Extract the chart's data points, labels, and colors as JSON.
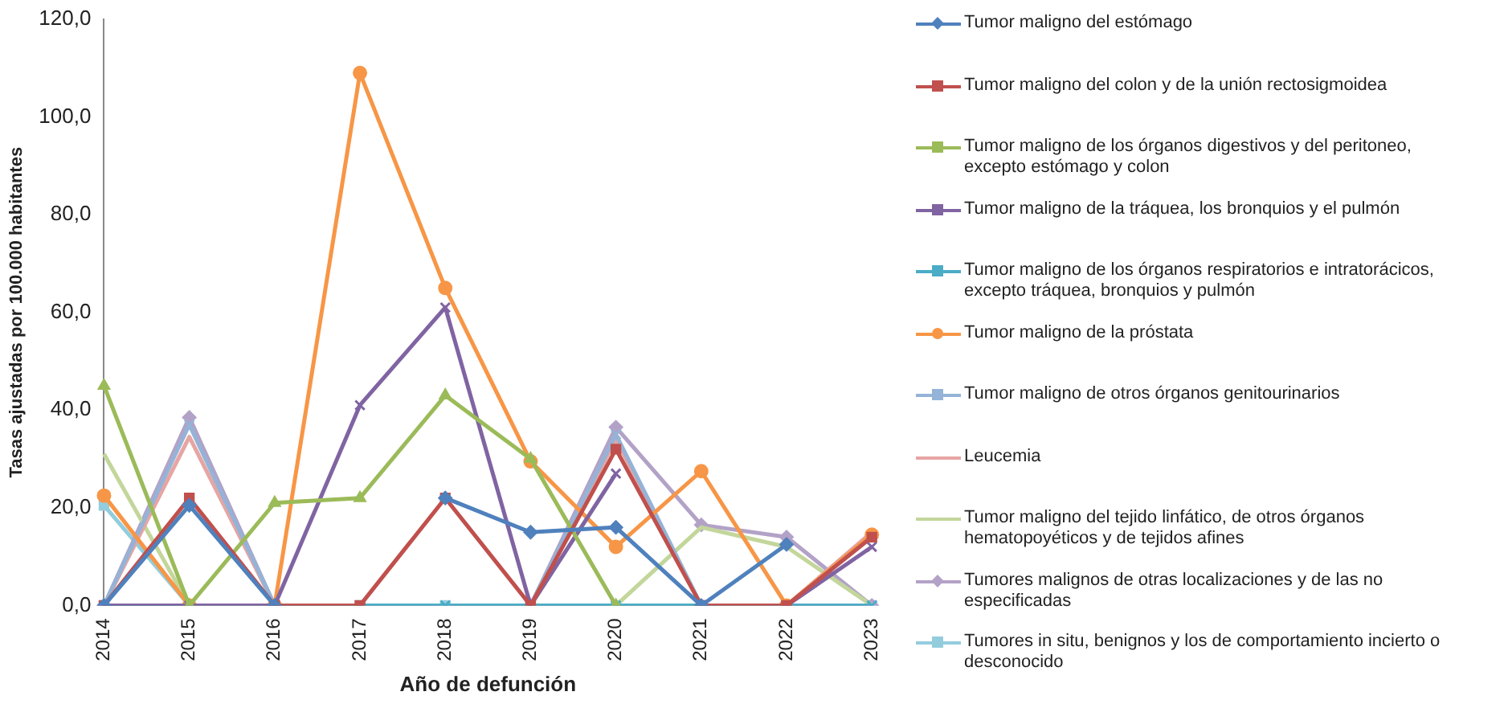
{
  "chart_data": {
    "type": "line",
    "xlabel": "Año de defunción",
    "ylabel": "Tasas ajustadas por 100.000 habitantes",
    "categories": [
      "2014",
      "2015",
      "2016",
      "2017",
      "2018",
      "2019",
      "2020",
      "2021",
      "2022",
      "2023"
    ],
    "ylim": [
      0,
      120
    ],
    "yticks": [
      {
        "value": 0,
        "label": "0,0"
      },
      {
        "value": 20,
        "label": "20,0"
      },
      {
        "value": 40,
        "label": "40,0"
      },
      {
        "value": 60,
        "label": "60,0"
      },
      {
        "value": 80,
        "label": "80,0"
      },
      {
        "value": 100,
        "label": "100,0"
      },
      {
        "value": 120,
        "label": "120,0"
      }
    ],
    "grid": false,
    "legend": "right",
    "series": [
      {
        "name": "Tumor maligno del estómago",
        "color": "#4f81bd",
        "marker": "diamond",
        "values": [
          0,
          20.5,
          0,
          null,
          22,
          15,
          16,
          0,
          12.5,
          null
        ]
      },
      {
        "name": "Tumor maligno del colon y de la unión rectosigmoidea",
        "color": "#c0504d",
        "marker": "square",
        "values": [
          0,
          22,
          0,
          0,
          22,
          0,
          32,
          0,
          0,
          14
        ]
      },
      {
        "name": "Tumor maligno de los órganos digestivos y del peritoneo, excepto estómago y colon",
        "color": "#9bbb59",
        "marker": "triangle",
        "values": [
          45,
          0,
          21,
          22,
          43,
          30,
          0,
          null,
          null,
          null
        ]
      },
      {
        "name": "Tumor maligno de la tráquea, los bronquios y el pulmón",
        "color": "#8064a2",
        "marker": "cross",
        "values": [
          0,
          0,
          0,
          41,
          61,
          0,
          27,
          null,
          0,
          12
        ]
      },
      {
        "name": "Tumor maligno de los órganos respiratorios e intratorácicos, excepto tráquea, bronquios y pulmón",
        "color": "#4bacc6",
        "marker": "cross",
        "values": [
          0,
          0,
          0,
          0,
          0,
          0,
          0,
          0,
          0,
          0
        ]
      },
      {
        "name": "Tumor maligno de la próstata",
        "color": "#f79646",
        "marker": "circle",
        "values": [
          22.5,
          0,
          0,
          109,
          65,
          29.5,
          12,
          27.5,
          0,
          14.5
        ]
      },
      {
        "name": "Tumor maligno de otros órganos genitourinarios",
        "color": "#95b3d7",
        "marker": "cross",
        "values": [
          0,
          37,
          0,
          null,
          null,
          0,
          35,
          0,
          0,
          0
        ]
      },
      {
        "name": "Leucemia",
        "color": "#e6a5a3",
        "marker": "none",
        "values": [
          0,
          34.5,
          0,
          null,
          null,
          0,
          34,
          0,
          0,
          15
        ]
      },
      {
        "name": "Tumor maligno del tejido linfático, de otros órganos hematopoyéticos y de tejidos afines",
        "color": "#c3d69b",
        "marker": "none",
        "values": [
          31,
          0,
          0,
          null,
          null,
          null,
          0,
          16,
          12,
          0
        ]
      },
      {
        "name": "Tumores malignos de otras localizaciones y de las no especificadas",
        "color": "#b3a2c7",
        "marker": "diamond",
        "values": [
          0,
          38.5,
          0,
          null,
          null,
          0,
          36.5,
          16.5,
          14,
          0
        ]
      },
      {
        "name": "Tumores in situ, benignos y los de comportamiento incierto o desconocido",
        "color": "#93cddd",
        "marker": "square",
        "values": [
          20.5,
          0,
          0,
          0,
          0,
          0,
          0,
          0,
          0,
          0
        ]
      }
    ]
  }
}
